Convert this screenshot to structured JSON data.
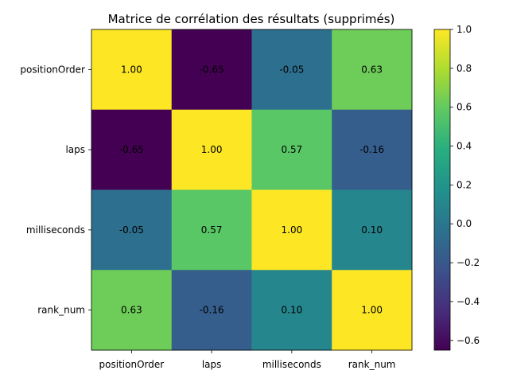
{
  "chart_data": {
    "type": "heatmap",
    "title": "Matrice de corrélation des résultats (supprimés)",
    "x_labels": [
      "positionOrder",
      "laps",
      "milliseconds",
      "rank_num"
    ],
    "y_labels": [
      "positionOrder",
      "laps",
      "milliseconds",
      "rank_num"
    ],
    "values": [
      [
        1.0,
        -0.65,
        -0.05,
        0.63
      ],
      [
        -0.65,
        1.0,
        0.57,
        -0.16
      ],
      [
        -0.05,
        0.57,
        1.0,
        0.1
      ],
      [
        0.63,
        -0.16,
        0.1,
        1.0
      ]
    ],
    "cell_labels": [
      [
        "1.00",
        "-0.65",
        "-0.05",
        "0.63"
      ],
      [
        "-0.65",
        "1.00",
        "0.57",
        "-0.16"
      ],
      [
        "-0.05",
        "0.57",
        "1.00",
        "0.10"
      ],
      [
        "0.63",
        "-0.16",
        "0.10",
        "1.00"
      ]
    ],
    "colormap": "viridis",
    "colorbar": {
      "range": [
        -0.65,
        1.0
      ],
      "ticks": [
        -0.6,
        -0.4,
        -0.2,
        0.0,
        0.2,
        0.4,
        0.6,
        0.8,
        1.0
      ],
      "tick_labels": [
        "−0.6",
        "−0.4",
        "−0.2",
        "0.0",
        "0.2",
        "0.4",
        "0.6",
        "0.8",
        "1.0"
      ]
    },
    "grid": false
  }
}
